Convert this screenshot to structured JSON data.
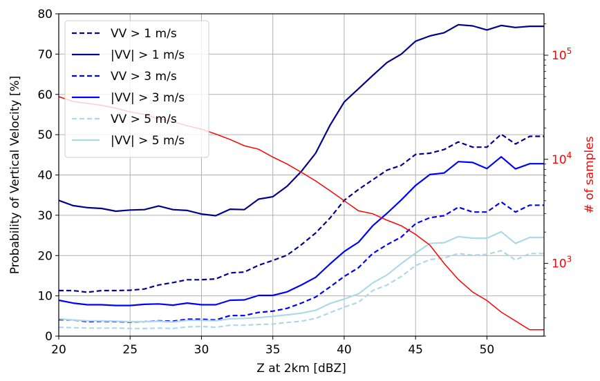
{
  "chart_data": {
    "type": "line",
    "xlabel": "Z at 2km [dBZ]",
    "ylabel": "Probability of Vertical Velocity [%]",
    "y2label": "# of samples",
    "xlim": [
      20,
      54
    ],
    "ylim": [
      0,
      80
    ],
    "y2lim": [
      200,
      250000
    ],
    "y2_scale": "log",
    "grid": true,
    "legend_position": "top-left",
    "x_ticks": [
      20,
      25,
      30,
      35,
      40,
      45,
      50
    ],
    "y_ticks": [
      0,
      10,
      20,
      30,
      40,
      50,
      60,
      70,
      80
    ],
    "y2_ticks": [
      {
        "value": 1000,
        "base": "10",
        "exp": "3"
      },
      {
        "value": 10000,
        "base": "10",
        "exp": "4"
      },
      {
        "value": 100000,
        "base": "10",
        "exp": "5"
      }
    ],
    "x": [
      20,
      21,
      22,
      23,
      24,
      25,
      26,
      27,
      28,
      29,
      30,
      31,
      32,
      33,
      34,
      35,
      36,
      37,
      38,
      39,
      40,
      41,
      42,
      43,
      44,
      45,
      46,
      47,
      48,
      49,
      50,
      51,
      52,
      53,
      54
    ],
    "series": [
      {
        "name": "VV > 1 m/s",
        "color": "#00008b",
        "dash": "dashed",
        "values": [
          11.3,
          11.3,
          10.9,
          11.3,
          11.3,
          11.4,
          11.7,
          12.7,
          13.3,
          14.0,
          14.0,
          14.2,
          15.7,
          15.9,
          17.6,
          18.8,
          20.1,
          22.7,
          25.6,
          29.3,
          33.7,
          36.4,
          38.8,
          41.2,
          42.4,
          45.1,
          45.4,
          46.3,
          48.2,
          46.9,
          46.9,
          50.1,
          47.7,
          49.6,
          49.6
        ]
      },
      {
        "name": "|VV| > 1 m/s",
        "color": "#00008b",
        "dash": "solid",
        "values": [
          33.7,
          32.4,
          31.9,
          31.7,
          31.0,
          31.3,
          31.4,
          32.3,
          31.4,
          31.2,
          30.3,
          29.9,
          31.5,
          31.4,
          34.0,
          34.6,
          37.2,
          40.9,
          45.4,
          52.3,
          58.1,
          61.4,
          64.7,
          67.9,
          70.0,
          73.2,
          74.5,
          75.3,
          77.3,
          77.0,
          76.0,
          77.1,
          76.6,
          76.9,
          76.9
        ]
      },
      {
        "name": "VV > 3 m/s",
        "color": "#0000ff",
        "dash": "dashed",
        "values": [
          4.1,
          4.0,
          3.6,
          3.7,
          3.6,
          3.5,
          3.6,
          3.8,
          3.7,
          4.2,
          4.2,
          4.0,
          5.1,
          5.1,
          5.9,
          6.2,
          6.9,
          8.2,
          9.7,
          12.2,
          14.8,
          17.0,
          20.5,
          22.7,
          24.6,
          27.9,
          29.4,
          29.9,
          32.0,
          30.8,
          30.8,
          33.3,
          30.8,
          32.5,
          32.5
        ]
      },
      {
        "name": "|VV| > 3 m/s",
        "color": "#0000ff",
        "dash": "solid",
        "values": [
          8.9,
          8.2,
          7.8,
          7.8,
          7.6,
          7.6,
          7.9,
          8.0,
          7.7,
          8.2,
          7.8,
          7.8,
          8.9,
          9.0,
          10.1,
          10.1,
          11.0,
          12.7,
          14.6,
          17.9,
          21.0,
          23.3,
          27.4,
          30.5,
          33.8,
          37.4,
          40.1,
          40.5,
          43.3,
          43.1,
          41.6,
          44.5,
          41.5,
          42.8,
          42.8
        ]
      },
      {
        "name": "VV > 5 m/s",
        "color": "#add8e6",
        "dash": "dashed",
        "values": [
          2.2,
          2.1,
          2.0,
          2.0,
          2.0,
          1.9,
          1.9,
          2.0,
          1.9,
          2.3,
          2.4,
          2.2,
          2.7,
          2.7,
          2.9,
          3.0,
          3.4,
          3.7,
          4.4,
          5.8,
          7.2,
          8.4,
          11.3,
          12.7,
          14.8,
          17.5,
          19.0,
          19.4,
          20.5,
          20.1,
          20.3,
          21.2,
          18.9,
          20.5,
          20.5
        ]
      },
      {
        "name": "|VV| > 5 m/s",
        "color": "#add8e6",
        "dash": "solid",
        "values": [
          4.3,
          4.0,
          3.8,
          3.8,
          3.7,
          3.6,
          3.6,
          3.7,
          3.5,
          3.9,
          3.9,
          3.8,
          4.3,
          4.4,
          4.6,
          4.9,
          5.3,
          5.7,
          6.4,
          8.1,
          9.2,
          10.5,
          13.2,
          15.2,
          18.0,
          20.6,
          23.0,
          23.2,
          24.7,
          24.3,
          24.3,
          25.9,
          23.0,
          24.5,
          24.5
        ]
      }
    ],
    "samples": {
      "name": "# of samples",
      "color": "#ff0000",
      "values": [
        40000,
        36000,
        34500,
        33000,
        31000,
        28500,
        27000,
        24500,
        23000,
        21000,
        19500,
        17500,
        15500,
        13500,
        12500,
        10500,
        9000,
        7500,
        6200,
        5000,
        4000,
        3200,
        3000,
        2600,
        2300,
        1900,
        1500,
        1000,
        700,
        530,
        440,
        340,
        280,
        230,
        230
      ]
    }
  }
}
